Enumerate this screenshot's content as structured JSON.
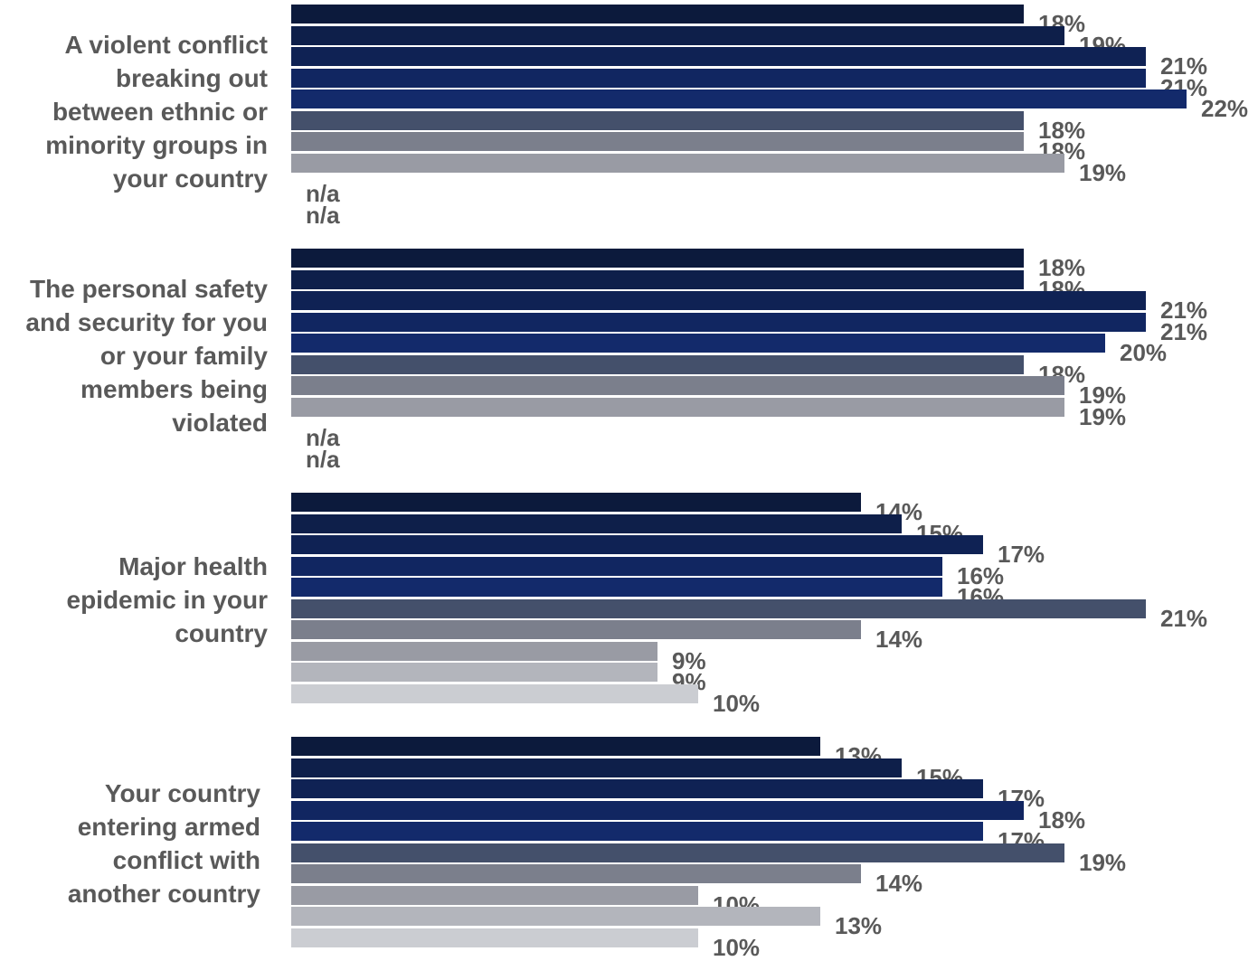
{
  "chart_data": {
    "type": "bar",
    "orientation": "horizontal",
    "xlim": [
      0,
      22
    ],
    "grid": false,
    "legend": "none",
    "value_suffix": "%",
    "groups": [
      {
        "label_lines": [
          "A violent conflict",
          "breaking out",
          "between ethnic or",
          "minority groups in",
          "your country"
        ],
        "values": [
          18,
          19,
          21,
          21,
          22,
          18,
          18,
          19,
          null,
          null
        ],
        "labels": [
          "18%",
          "19%",
          "21%",
          "21%",
          "22%",
          "18%",
          "18%",
          "19%",
          "n/a",
          "n/a"
        ]
      },
      {
        "label_lines": [
          "The personal safety",
          "and security for you",
          "or your family",
          "members being",
          "violated"
        ],
        "values": [
          18,
          18,
          21,
          21,
          20,
          18,
          19,
          19,
          null,
          null
        ],
        "labels": [
          "18%",
          "18%",
          "21%",
          "21%",
          "20%",
          "18%",
          "19%",
          "19%",
          "n/a",
          "n/a"
        ]
      },
      {
        "label_lines": [
          "Major health",
          "epidemic in your",
          "country"
        ],
        "values": [
          14,
          15,
          17,
          16,
          16,
          21,
          14,
          9,
          9,
          10
        ],
        "labels": [
          "14%",
          "15%",
          "17%",
          "16%",
          "16%",
          "21%",
          "14%",
          "9%",
          "9%",
          "10%"
        ]
      },
      {
        "label_lines": [
          "Your country",
          "entering armed",
          "conflict with",
          "another country"
        ],
        "values": [
          13,
          15,
          17,
          18,
          17,
          19,
          14,
          10,
          13,
          10
        ],
        "labels": [
          "13%",
          "15%",
          "17%",
          "18%",
          "17%",
          "19%",
          "14%",
          "10%",
          "13%",
          "10%"
        ]
      }
    ],
    "series_colors": [
      "#0c1a3c",
      "#0e1f4a",
      "#0f2254",
      "#112661",
      "#132a6b",
      "#44506b",
      "#7b7f8c",
      "#999ba4",
      "#b3b5bc",
      "#cbcdd2"
    ]
  }
}
